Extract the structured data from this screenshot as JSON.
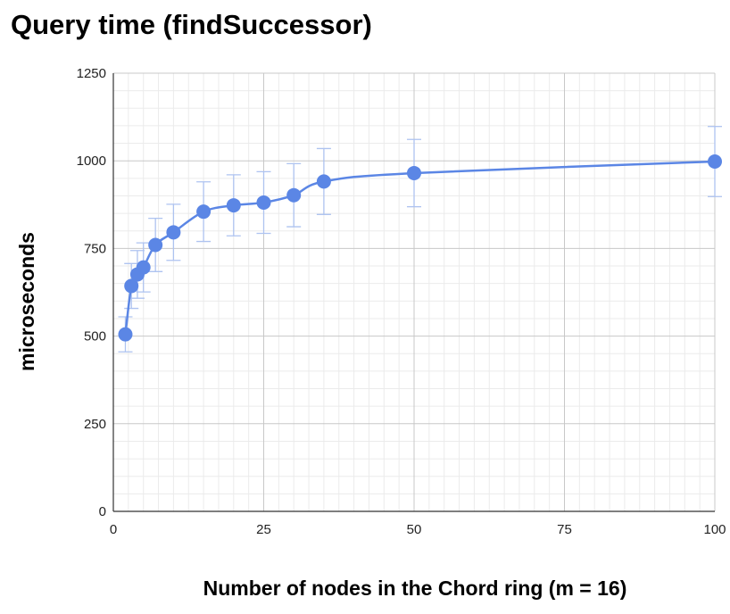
{
  "chart_data": {
    "type": "line",
    "title": "Query time (findSuccessor)",
    "xlabel": "Number of nodes in the Chord ring (m = 16)",
    "ylabel": "microseconds",
    "xlim": [
      0,
      100
    ],
    "ylim": [
      0,
      1250
    ],
    "xticks": [
      "0",
      "25",
      "50",
      "75",
      "100"
    ],
    "yticks": [
      "0",
      "250",
      "500",
      "750",
      "1000",
      "1250"
    ],
    "grid": true,
    "legend": "none",
    "series": [
      {
        "color": "#5b86e5",
        "error_bar_color": "#aec3f0",
        "points": [
          {
            "x": 2,
            "y": 505,
            "err_low": 455,
            "err_high": 555
          },
          {
            "x": 3,
            "y": 643,
            "err_low": 579,
            "err_high": 707
          },
          {
            "x": 4,
            "y": 676,
            "err_low": 608,
            "err_high": 744
          },
          {
            "x": 5,
            "y": 696,
            "err_low": 626,
            "err_high": 766
          },
          {
            "x": 7,
            "y": 760,
            "err_low": 684,
            "err_high": 836
          },
          {
            "x": 10,
            "y": 796,
            "err_low": 716,
            "err_high": 876
          },
          {
            "x": 15,
            "y": 855,
            "err_low": 770,
            "err_high": 940
          },
          {
            "x": 20,
            "y": 873,
            "err_low": 786,
            "err_high": 960
          },
          {
            "x": 25,
            "y": 881,
            "err_low": 793,
            "err_high": 969
          },
          {
            "x": 30,
            "y": 902,
            "err_low": 812,
            "err_high": 992
          },
          {
            "x": 35,
            "y": 941,
            "err_low": 847,
            "err_high": 1035
          },
          {
            "x": 50,
            "y": 965,
            "err_low": 869,
            "err_high": 1061
          },
          {
            "x": 100,
            "y": 998,
            "err_low": 898,
            "err_high": 1098
          }
        ]
      }
    ]
  }
}
